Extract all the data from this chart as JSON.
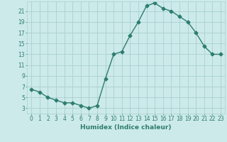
{
  "x": [
    0,
    1,
    2,
    3,
    4,
    5,
    6,
    7,
    8,
    9,
    10,
    11,
    12,
    13,
    14,
    15,
    16,
    17,
    18,
    19,
    20,
    21,
    22,
    23
  ],
  "y": [
    6.5,
    6.0,
    5.0,
    4.5,
    4.0,
    4.0,
    3.5,
    3.0,
    3.5,
    8.5,
    13.0,
    13.5,
    16.5,
    19.0,
    22.0,
    22.5,
    21.5,
    21.0,
    20.0,
    19.0,
    17.0,
    14.5,
    13.0,
    13.0
  ],
  "xlabel": "Humidex (Indice chaleur)",
  "ylabel": "",
  "line_color": "#2e7d6e",
  "marker": "D",
  "marker_size": 2.5,
  "line_width": 1.0,
  "bg_color": "#cceaea",
  "grid_color": "#aacfcf",
  "xlim": [
    -0.5,
    23.5
  ],
  "ylim": [
    2,
    22.8
  ],
  "yticks": [
    3,
    5,
    7,
    9,
    11,
    13,
    15,
    17,
    19,
    21
  ],
  "xticks": [
    0,
    1,
    2,
    3,
    4,
    5,
    6,
    7,
    8,
    9,
    10,
    11,
    12,
    13,
    14,
    15,
    16,
    17,
    18,
    19,
    20,
    21,
    22,
    23
  ],
  "tick_fontsize": 5.5,
  "label_fontsize": 6.5
}
